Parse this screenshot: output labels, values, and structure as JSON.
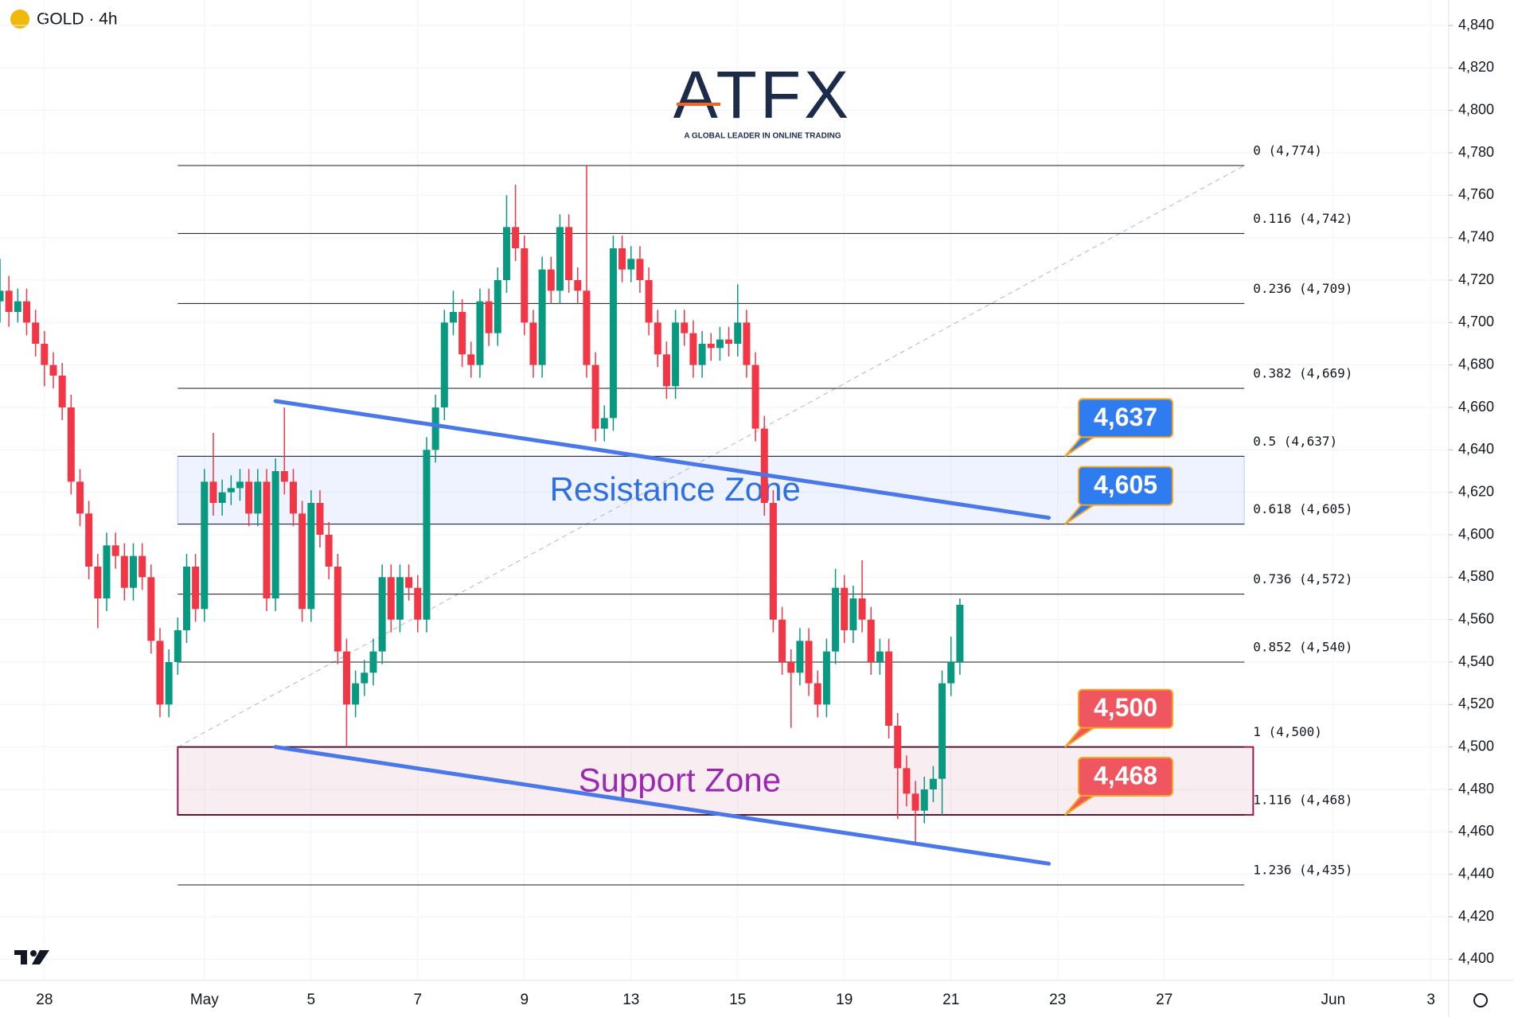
{
  "header": {
    "symbol": "GOLD · 4h"
  },
  "logo": {
    "name": "ATFX",
    "tagline": "A GLOBAL LEADER IN ONLINE TRADING"
  },
  "chart_data": {
    "type": "candlestick",
    "colors": {
      "up": "#089981",
      "down": "#f23645"
    },
    "ohlc": [
      [
        4710,
        4730,
        4700,
        4715
      ],
      [
        4715,
        4722,
        4698,
        4705
      ],
      [
        4705,
        4716,
        4700,
        4710
      ],
      [
        4710,
        4716,
        4694,
        4700
      ],
      [
        4700,
        4706,
        4684,
        4690
      ],
      [
        4690,
        4696,
        4670,
        4680
      ],
      [
        4680,
        4686,
        4669,
        4675
      ],
      [
        4675,
        4681,
        4654,
        4660
      ],
      [
        4660,
        4666,
        4619,
        4625
      ],
      [
        4625,
        4631,
        4604,
        4610
      ],
      [
        4610,
        4616,
        4579,
        4585
      ],
      [
        4585,
        4591,
        4556,
        4570
      ],
      [
        4570,
        4601,
        4564,
        4595
      ],
      [
        4595,
        4601,
        4584,
        4590
      ],
      [
        4590,
        4596,
        4569,
        4575
      ],
      [
        4575,
        4596,
        4569,
        4590
      ],
      [
        4590,
        4596,
        4574,
        4580
      ],
      [
        4580,
        4586,
        4544,
        4550
      ],
      [
        4550,
        4556,
        4514,
        4520
      ],
      [
        4520,
        4546,
        4514,
        4540
      ],
      [
        4540,
        4561,
        4534,
        4555
      ],
      [
        4555,
        4591,
        4549,
        4585
      ],
      [
        4585,
        4591,
        4559,
        4565
      ],
      [
        4565,
        4631,
        4559,
        4625
      ],
      [
        4625,
        4648,
        4609,
        4615
      ],
      [
        4615,
        4626,
        4609,
        4620
      ],
      [
        4620,
        4628,
        4614,
        4622
      ],
      [
        4622,
        4631,
        4616,
        4625
      ],
      [
        4625,
        4631,
        4604,
        4610
      ],
      [
        4610,
        4631,
        4604,
        4625
      ],
      [
        4625,
        4631,
        4564,
        4570
      ],
      [
        4570,
        4636,
        4564,
        4630
      ],
      [
        4630,
        4660,
        4619,
        4625
      ],
      [
        4625,
        4631,
        4604,
        4610
      ],
      [
        4610,
        4616,
        4559,
        4565
      ],
      [
        4565,
        4621,
        4559,
        4615
      ],
      [
        4615,
        4621,
        4594,
        4600
      ],
      [
        4600,
        4606,
        4579,
        4585
      ],
      [
        4585,
        4591,
        4539,
        4545
      ],
      [
        4545,
        4551,
        4500,
        4520
      ],
      [
        4520,
        4536,
        4514,
        4530
      ],
      [
        4530,
        4541,
        4524,
        4535
      ],
      [
        4535,
        4551,
        4529,
        4545
      ],
      [
        4545,
        4586,
        4539,
        4580
      ],
      [
        4580,
        4586,
        4554,
        4560
      ],
      [
        4560,
        4586,
        4554,
        4580
      ],
      [
        4580,
        4586,
        4569,
        4575
      ],
      [
        4575,
        4581,
        4554,
        4560
      ],
      [
        4560,
        4646,
        4554,
        4640
      ],
      [
        4640,
        4666,
        4634,
        4660
      ],
      [
        4660,
        4706,
        4654,
        4700
      ],
      [
        4700,
        4715,
        4694,
        4705
      ],
      [
        4705,
        4711,
        4679,
        4685
      ],
      [
        4685,
        4691,
        4674,
        4680
      ],
      [
        4680,
        4716,
        4674,
        4710
      ],
      [
        4710,
        4716,
        4689,
        4695
      ],
      [
        4695,
        4726,
        4689,
        4720
      ],
      [
        4720,
        4760,
        4714,
        4745
      ],
      [
        4745,
        4765,
        4729,
        4735
      ],
      [
        4735,
        4741,
        4694,
        4700
      ],
      [
        4700,
        4706,
        4674,
        4680
      ],
      [
        4680,
        4731,
        4674,
        4725
      ],
      [
        4725,
        4731,
        4709,
        4715
      ],
      [
        4715,
        4751,
        4709,
        4745
      ],
      [
        4745,
        4751,
        4714,
        4720
      ],
      [
        4720,
        4726,
        4709,
        4715
      ],
      [
        4715,
        4774,
        4674,
        4680
      ],
      [
        4680,
        4686,
        4644,
        4650
      ],
      [
        4650,
        4661,
        4644,
        4655
      ],
      [
        4655,
        4741,
        4649,
        4735
      ],
      [
        4735,
        4741,
        4719,
        4725
      ],
      [
        4725,
        4736,
        4719,
        4730
      ],
      [
        4730,
        4736,
        4714,
        4720
      ],
      [
        4720,
        4726,
        4694,
        4700
      ],
      [
        4700,
        4706,
        4679,
        4685
      ],
      [
        4685,
        4691,
        4664,
        4670
      ],
      [
        4670,
        4706,
        4664,
        4700
      ],
      [
        4700,
        4706,
        4689,
        4695
      ],
      [
        4695,
        4701,
        4674,
        4680
      ],
      [
        4680,
        4696,
        4674,
        4690
      ],
      [
        4690,
        4695,
        4682,
        4688
      ],
      [
        4688,
        4698,
        4682,
        4692
      ],
      [
        4692,
        4698,
        4684,
        4690
      ],
      [
        4690,
        4718,
        4684,
        4700
      ],
      [
        4700,
        4706,
        4674,
        4680
      ],
      [
        4680,
        4686,
        4644,
        4650
      ],
      [
        4650,
        4656,
        4609,
        4615
      ],
      [
        4615,
        4621,
        4554,
        4560
      ],
      [
        4560,
        4566,
        4534,
        4540
      ],
      [
        4540,
        4546,
        4509,
        4535
      ],
      [
        4535,
        4556,
        4529,
        4550
      ],
      [
        4550,
        4556,
        4524,
        4530
      ],
      [
        4530,
        4536,
        4514,
        4520
      ],
      [
        4520,
        4551,
        4514,
        4545
      ],
      [
        4545,
        4584,
        4539,
        4575
      ],
      [
        4575,
        4581,
        4549,
        4555
      ],
      [
        4555,
        4576,
        4549,
        4570
      ],
      [
        4570,
        4588,
        4554,
        4560
      ],
      [
        4560,
        4566,
        4534,
        4540
      ],
      [
        4540,
        4551,
        4534,
        4545
      ],
      [
        4545,
        4551,
        4504,
        4510
      ],
      [
        4510,
        4516,
        4466,
        4490
      ],
      [
        4490,
        4496,
        4472,
        4478
      ],
      [
        4478,
        4484,
        4455,
        4470
      ],
      [
        4470,
        4486,
        4464,
        4480
      ],
      [
        4480,
        4491,
        4474,
        4485
      ],
      [
        4485,
        4536,
        4468,
        4530
      ],
      [
        4530,
        4552,
        4524,
        4540
      ],
      [
        4540,
        4570,
        4534,
        4567
      ]
    ],
    "xlim": [
      0,
      163
    ],
    "xticks": [
      {
        "value": 5,
        "label": "28"
      },
      {
        "value": 23,
        "label": "May"
      },
      {
        "value": 35,
        "label": "5"
      },
      {
        "value": 47,
        "label": "7"
      },
      {
        "value": 59,
        "label": "9"
      },
      {
        "value": 71,
        "label": "13"
      },
      {
        "value": 83,
        "label": "15"
      },
      {
        "value": 95,
        "label": "19"
      },
      {
        "value": 107,
        "label": "21"
      },
      {
        "value": 119,
        "label": "23"
      },
      {
        "value": 131,
        "label": "27"
      },
      {
        "value": 150,
        "label": "Jun"
      },
      {
        "value": 161,
        "label": "3"
      }
    ],
    "ylim": [
      4390,
      4852
    ],
    "yticks": [
      {
        "value": 4400,
        "label": "4,400"
      },
      {
        "value": 4420,
        "label": "4,420"
      },
      {
        "value": 4440,
        "label": "4,440"
      },
      {
        "value": 4460,
        "label": "4,460"
      },
      {
        "value": 4480,
        "label": "4,480"
      },
      {
        "value": 4500,
        "label": "4,500"
      },
      {
        "value": 4520,
        "label": "4,520"
      },
      {
        "value": 4540,
        "label": "4,540"
      },
      {
        "value": 4560,
        "label": "4,560"
      },
      {
        "value": 4580,
        "label": "4,580"
      },
      {
        "value": 4600,
        "label": "4,600"
      },
      {
        "value": 4620,
        "label": "4,620"
      },
      {
        "value": 4640,
        "label": "4,640"
      },
      {
        "value": 4660,
        "label": "4,660"
      },
      {
        "value": 4680,
        "label": "4,680"
      },
      {
        "value": 4700,
        "label": "4,700"
      },
      {
        "value": 4720,
        "label": "4,720"
      },
      {
        "value": 4740,
        "label": "4,740"
      },
      {
        "value": 4760,
        "label": "4,760"
      },
      {
        "value": 4780,
        "label": "4,780"
      },
      {
        "value": 4800,
        "label": "4,800"
      },
      {
        "value": 4820,
        "label": "4,820"
      },
      {
        "value": 4840,
        "label": "4,840"
      }
    ],
    "fib": {
      "start": 20,
      "end": 140,
      "levels": [
        {
          "label": "0 (4,774)",
          "value": 4774
        },
        {
          "label": "0.116 (4,742)",
          "value": 4742
        },
        {
          "label": "0.236 (4,709)",
          "value": 4709
        },
        {
          "label": "0.382 (4,669)",
          "value": 4669
        },
        {
          "label": "0.5 (4,637)",
          "value": 4637
        },
        {
          "label": "0.618 (4,605)",
          "value": 4605
        },
        {
          "label": "0.736 (4,572)",
          "value": 4572
        },
        {
          "label": "0.852 (4,540)",
          "value": 4540
        },
        {
          "label": "1 (4,500)",
          "value": 4500
        },
        {
          "label": "1.116 (4,468)",
          "value": 4468
        },
        {
          "label": "1.236 (4,435)",
          "value": 4435
        }
      ],
      "anchor": {
        "x": [
          20,
          140
        ],
        "y": [
          4500,
          4774
        ]
      }
    },
    "zones": [
      {
        "label": "Resistance Zone",
        "low": 4605,
        "high": 4637,
        "start": 20,
        "end": 140,
        "color": "#2962ff",
        "text_color": "#2f6fe0"
      },
      {
        "label": "Support Zone",
        "low": 4468,
        "high": 4500,
        "start": 20,
        "end": 141,
        "color": "#a3174f",
        "text_color": "#9c27b0"
      }
    ],
    "trendlines": [
      {
        "x": [
          31,
          118
        ],
        "y": [
          4663,
          4608
        ],
        "color": "#4a78e8"
      },
      {
        "x": [
          31,
          118
        ],
        "y": [
          4500,
          4445
        ],
        "color": "#4a78e8"
      }
    ],
    "price_tags": [
      {
        "value": 4637,
        "label": "4,637",
        "color": "#2f7bf0"
      },
      {
        "value": 4605,
        "label": "4,605",
        "color": "#2f7bf0"
      },
      {
        "value": 4500,
        "label": "4,500",
        "color": "#f05660"
      },
      {
        "value": 4468,
        "label": "4,468",
        "color": "#f05660"
      }
    ]
  }
}
